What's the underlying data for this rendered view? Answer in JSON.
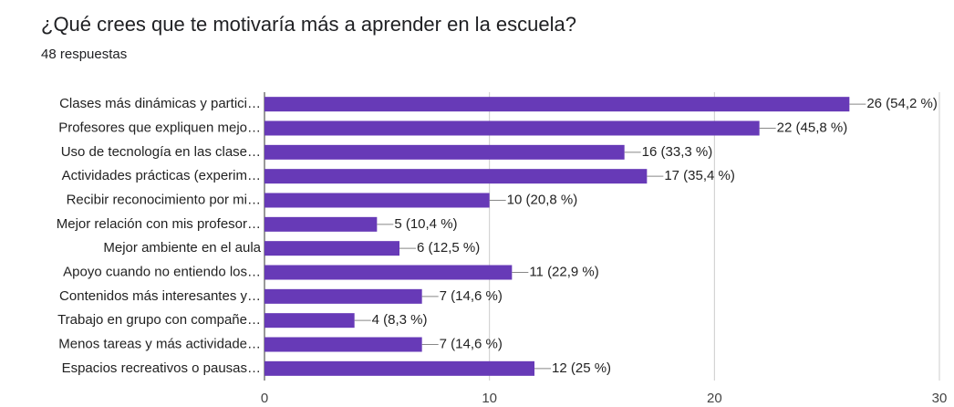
{
  "chart_data": {
    "type": "bar",
    "orientation": "horizontal",
    "title": "¿Qué crees que te motivaría más a aprender en la escuela?",
    "subtitle": "48 respuestas",
    "categories": [
      "Clases más dinámicas y partici…",
      "Profesores que expliquen mejo…",
      "Uso de tecnología en las clase…",
      "Actividades prácticas (experim…",
      "Recibir reconocimiento por mi…",
      "Mejor relación con mis profesor…",
      "Mejor ambiente en el aula",
      "Apoyo cuando no entiendo los…",
      "Contenidos más interesantes y…",
      "Trabajo en grupo con compañe…",
      "Menos tareas y más actividade…",
      "Espacios recreativos o pausas…"
    ],
    "values": [
      26,
      22,
      16,
      17,
      10,
      5,
      6,
      11,
      7,
      4,
      7,
      12
    ],
    "value_labels": [
      "26 (54,2 %)",
      "22 (45,8 %)",
      "16 (33,3 %)",
      "17 (35,4 %)",
      "10 (20,8 %)",
      "5 (10,4 %)",
      "6 (12,5 %)",
      "11 (22,9 %)",
      "7 (14,6 %)",
      "4 (8,3 %)",
      "7 (14,6 %)",
      "12 (25 %)"
    ],
    "color": "#673ab7",
    "xlim": [
      0,
      30
    ],
    "xticks": [
      0,
      10,
      20,
      30
    ],
    "grid": true
  }
}
